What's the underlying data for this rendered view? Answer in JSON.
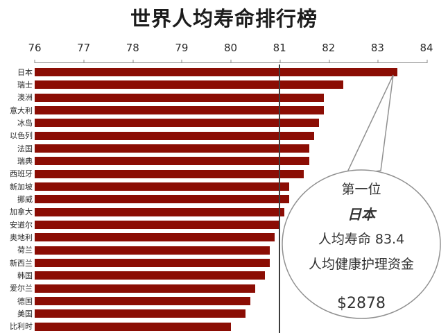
{
  "title": "世界人均寿命排行榜",
  "chart_data": {
    "type": "bar",
    "orientation": "horizontal",
    "title": "世界人均寿命排行榜",
    "xlim": [
      76,
      84
    ],
    "x_ticks": [
      "76",
      "77",
      "78",
      "79",
      "80",
      "81",
      "82",
      "83",
      "84"
    ],
    "bar_color": "#8B0D04",
    "gridline_x": 81,
    "categories": [
      "日本",
      "瑞士",
      "澳洲",
      "意大利",
      "冰岛",
      "以色列",
      "法国",
      "瑞典",
      "西班牙",
      "新加坡",
      "挪威",
      "加拿大",
      "安道尔",
      "奥地利",
      "荷兰",
      "新西兰",
      "韩国",
      "爱尔兰",
      "德国",
      "美国",
      "比利时"
    ],
    "values": [
      83.4,
      82.3,
      81.9,
      81.9,
      81.8,
      81.7,
      81.6,
      81.6,
      81.5,
      81.2,
      81.2,
      81.1,
      81.0,
      80.9,
      80.8,
      80.8,
      80.7,
      80.5,
      80.4,
      80.3,
      80.0
    ]
  },
  "callout": {
    "rank": "第一位",
    "country": "日本",
    "life_expectancy": "人均寿命 83.4",
    "healthcare_label": "人均健康护理资金",
    "healthcare_value": "$2878"
  }
}
